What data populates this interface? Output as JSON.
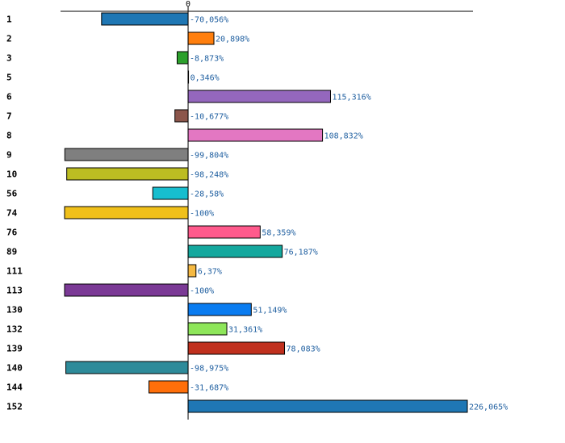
{
  "chart_data": {
    "type": "bar",
    "orientation": "horizontal",
    "title": "",
    "xlabel": "",
    "ylabel": "",
    "xlim": [
      -100,
      226.065
    ],
    "zero_tick_label": "0",
    "grid": false,
    "categories": [
      "1",
      "2",
      "3",
      "5",
      "6",
      "7",
      "8",
      "9",
      "10",
      "56",
      "74",
      "76",
      "89",
      "111",
      "113",
      "130",
      "132",
      "139",
      "140",
      "144",
      "152"
    ],
    "values": [
      -70.056,
      20.898,
      -8.873,
      0.346,
      115.316,
      -10.677,
      108.832,
      -99.804,
      -98.248,
      -28.58,
      -100,
      58.359,
      76.187,
      6.37,
      -100,
      51.149,
      31.361,
      78.083,
      -98.975,
      -31.687,
      226.065
    ],
    "value_labels": [
      "-70,056%",
      "20,898%",
      "-8,873%",
      "0,346%",
      "115,316%",
      "-10,677%",
      "108,832%",
      "-99,804%",
      "-98,248%",
      "-28,58%",
      "-100%",
      "58,359%",
      "76,187%",
      "6,37%",
      "-100%",
      "51,149%",
      "31,361%",
      "78,083%",
      "-98,975%",
      "-31,687%",
      "226,065%"
    ],
    "colors": [
      "#1f77b4",
      "#ff7f0e",
      "#2ca02c",
      "#d62728",
      "#9467bd",
      "#8c564b",
      "#e377c2",
      "#7f7f7f",
      "#bcbd22",
      "#17becf",
      "#f0c01a",
      "#ff5a8c",
      "#14a89e",
      "#f5b942",
      "#7b3a96",
      "#0a7cf0",
      "#8ee65a",
      "#c0301e",
      "#2e8b9a",
      "#ff6f0a",
      "#1f77b4"
    ],
    "label_color": "#1f5fa0"
  }
}
